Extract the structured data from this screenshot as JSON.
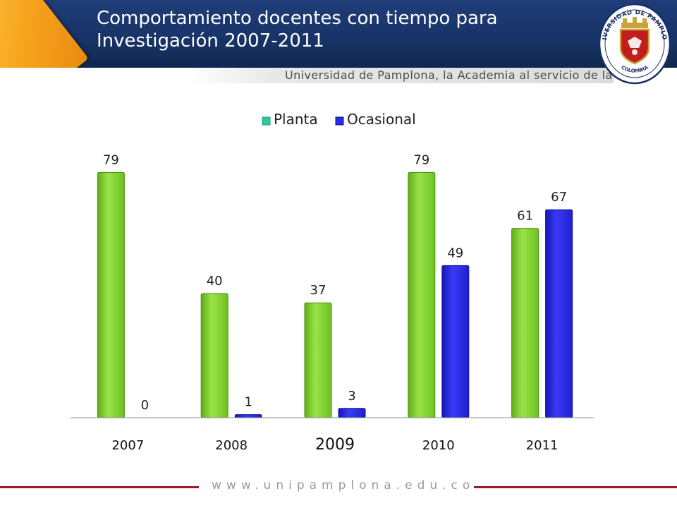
{
  "header": {
    "title_line1": "Comportamiento docentes con tiempo para",
    "title_line2": "Investigación 2007-2011",
    "tagline": "Universidad de Pamplona, la Academia al servicio de la Vida",
    "logo_text_top": "UNIVERSIDAD DE PAMPLONA",
    "logo_text_bottom": "COLOMBIA"
  },
  "chart_data": {
    "type": "bar",
    "categories": [
      "2007",
      "2008",
      "2009",
      "2010",
      "2011"
    ],
    "series": [
      {
        "name": "Planta",
        "values": [
          79,
          40,
          37,
          79,
          61
        ],
        "color": "#7ed321"
      },
      {
        "name": "Ocasional",
        "values": [
          0,
          1,
          3,
          49,
          67
        ],
        "color": "#2a2ae0"
      }
    ],
    "ylim": [
      0,
      80
    ],
    "legend_position": "top",
    "grid": false,
    "data_labels": true
  },
  "footer": {
    "url": "www.unipamplona.edu.co"
  },
  "colors": {
    "header_bg": "#1e3d79",
    "accent": "#f7a51e",
    "planta": "#7ed321",
    "ocasional": "#2a2ae0",
    "footer_line": "#9c1f1f"
  }
}
